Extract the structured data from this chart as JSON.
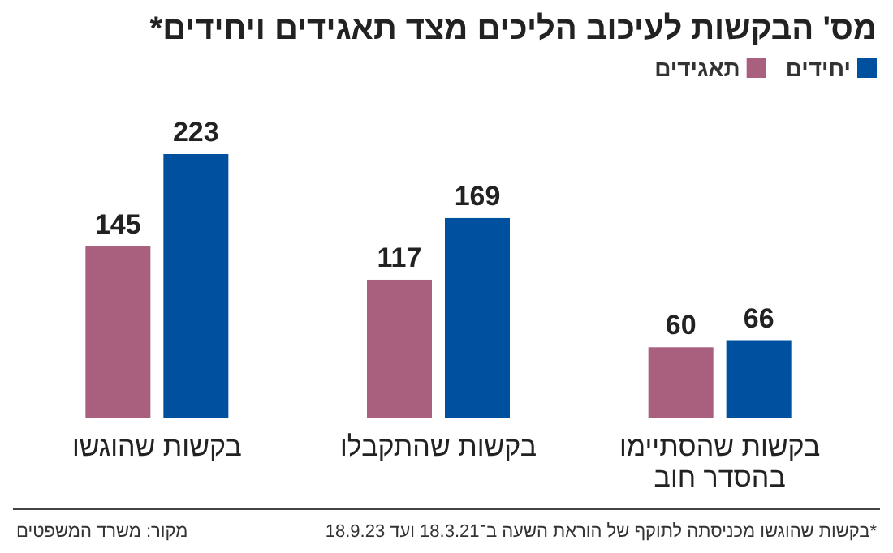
{
  "chart_data": {
    "type": "bar",
    "title": "מס' הבקשות לעיכוב הליכים מצד תאגידים ויחידים*",
    "categories": [
      "בקשות שהוגשו",
      "בקשות שהתקבלו",
      "בקשות שהסתיימו בהסדר חוב"
    ],
    "series": [
      {
        "name": "תאגידים",
        "color": "#a8607e",
        "values": [
          145,
          117,
          60
        ]
      },
      {
        "name": "יחידים",
        "color": "#0050a0",
        "values": [
          223,
          169,
          66
        ]
      }
    ],
    "data_labels": true,
    "legend": "top right",
    "annotations": [
      "*בקשות שהוגשו מכניסתה לתוקף של הוראת השעה ב־18.3.21 ועד 18.9.23",
      "מקור: משרד המשפטים"
    ]
  }
}
